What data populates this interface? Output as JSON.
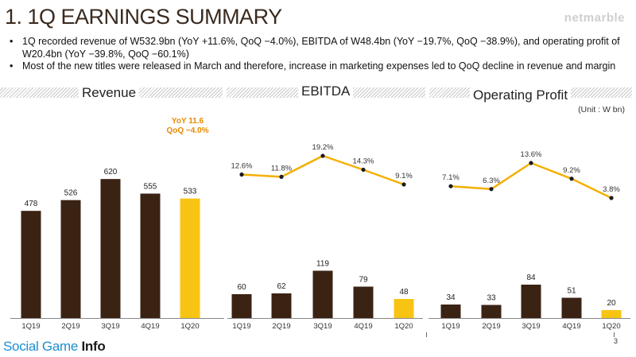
{
  "title": "1. 1Q EARNINGS SUMMARY",
  "brand": "netmarble",
  "bullets": [
    "1Q recorded revenue of W532.9bn (YoY +11.6%, QoQ −4.0%), EBITDA of W48.4bn (YoY −19.7%, QoQ −38.9%), and operating profit of W20.4bn (YoY −39.8%, QoQ −60.1%)",
    "Most of the new titles were released in March and therefore, increase in marketing expenses led to QoQ decline in revenue and margin"
  ],
  "unit_note": "(Unit : W bn)",
  "callout": {
    "line1": "YoY 11.6",
    "line2": "QoQ −4.0%"
  },
  "footer": {
    "part1": "Social Game ",
    "part2": "Info"
  },
  "page_number": "3",
  "colors": {
    "bar": "#3b2314",
    "highlight": "#f8c414",
    "line": "#f4b000",
    "dot": "#1c1c1c"
  },
  "chart_data": [
    {
      "type": "bar",
      "title": "Revenue",
      "categories": [
        "1Q19",
        "2Q19",
        "3Q19",
        "4Q19",
        "1Q20"
      ],
      "values": [
        478,
        526,
        620,
        555,
        533
      ],
      "highlight_index": 4
    },
    {
      "type": "bar+line",
      "title": "EBITDA",
      "categories": [
        "1Q19",
        "2Q19",
        "3Q19",
        "4Q19",
        "1Q20"
      ],
      "values": [
        60,
        62,
        119,
        79,
        48
      ],
      "margin_labels": [
        "12.6%",
        "11.8%",
        "19.2%",
        "14.3%",
        "9.1%"
      ],
      "margins": [
        12.6,
        11.8,
        19.2,
        14.3,
        9.1
      ],
      "highlight_index": 4
    },
    {
      "type": "bar+line",
      "title": "Operating Profit",
      "categories": [
        "1Q19",
        "2Q19",
        "3Q19",
        "4Q19",
        "1Q20"
      ],
      "values": [
        34,
        33,
        84,
        51,
        20
      ],
      "margin_labels": [
        "7.1%",
        "6.3%",
        "13.6%",
        "9.2%",
        "3.8%"
      ],
      "margins": [
        7.1,
        6.3,
        13.6,
        9.2,
        3.8
      ],
      "highlight_index": 4
    }
  ]
}
